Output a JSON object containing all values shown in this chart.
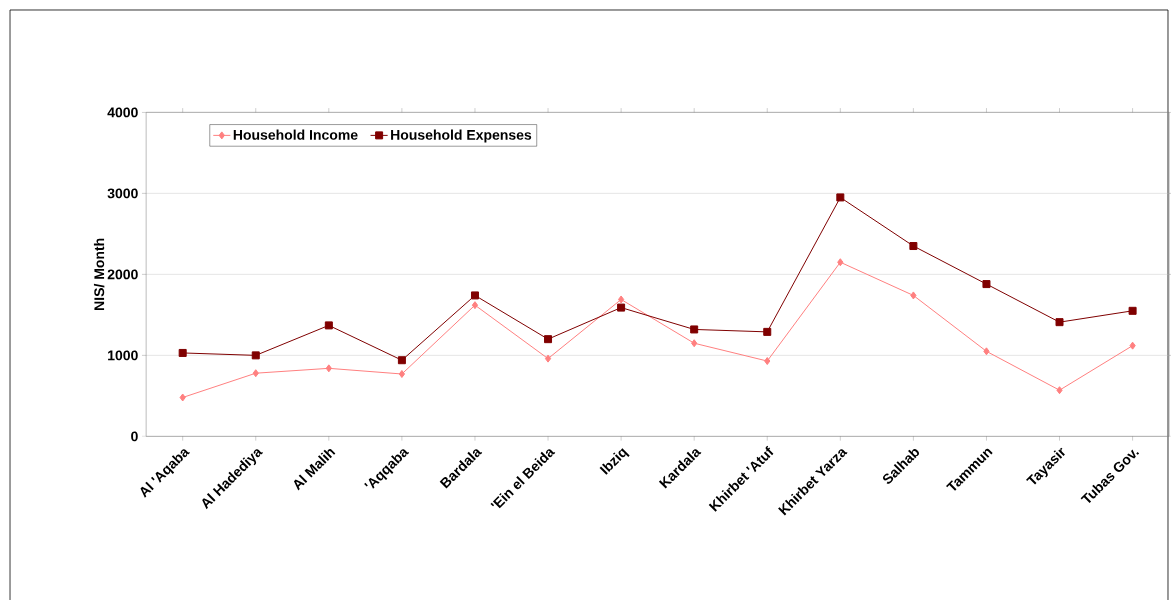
{
  "chart_data": {
    "type": "line",
    "categories": [
      "Al 'Aqaba",
      "Al Hadediya",
      "Al Malih",
      "'Aqqaba",
      "Bardala",
      "'Ein el Beida",
      "Ibziq",
      "Kardala",
      "Khirbet 'Atuf",
      "Khirbet Yarza",
      "Salhab",
      "Tammun",
      "Tayasir",
      "Tubas Gov."
    ],
    "ylabel": "NIS/ Month",
    "series": [
      {
        "name": "Household Income",
        "color": "#ff8080",
        "marker": "diamond",
        "values": [
          480,
          780,
          840,
          770,
          1620,
          960,
          1690,
          1150,
          930,
          2150,
          1740,
          1050,
          570,
          1120
        ]
      },
      {
        "name": "Household Expenses",
        "color": "#800000",
        "marker": "square",
        "values": [
          1030,
          1000,
          1370,
          940,
          1740,
          1200,
          1590,
          1320,
          1290,
          2950,
          2350,
          1880,
          1410,
          1550
        ]
      }
    ],
    "ylim": [
      0,
      4000
    ],
    "yticks": [
      0,
      1000,
      2000,
      3000,
      4000
    ],
    "grid": "y",
    "legend": "top left",
    "line_style": "solid"
  }
}
